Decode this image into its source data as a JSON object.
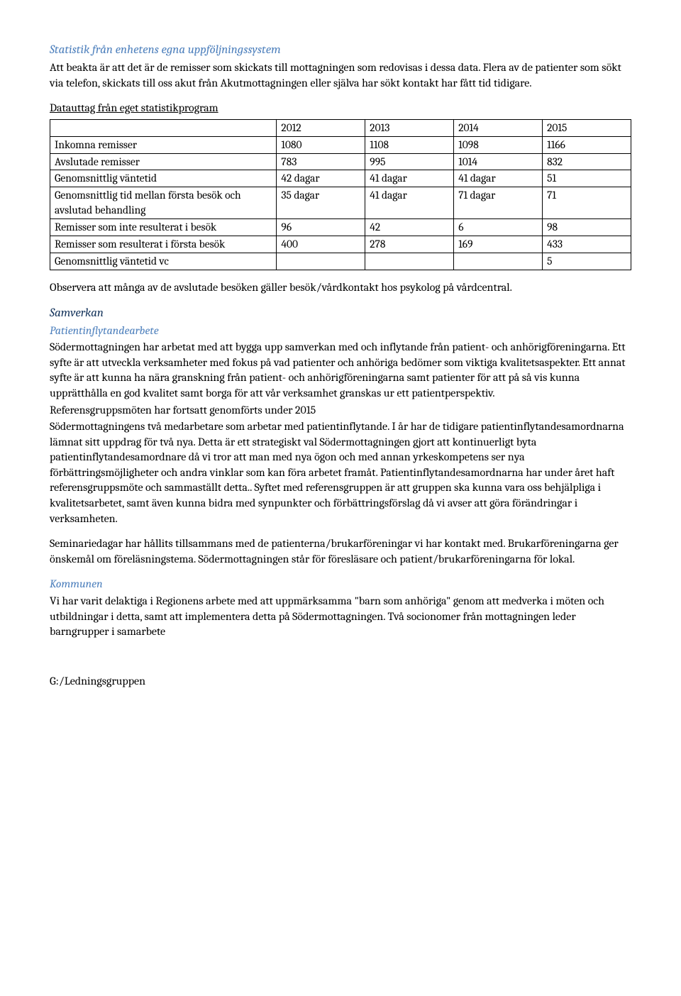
{
  "section1": {
    "heading": "Statistik från enhetens egna uppföljningssystem",
    "para1": "Att beakta är att det är de remisser som skickats till mottagningen som redovisas i dessa data. Flera av de patienter som sökt via telefon, skickats till oss akut från Akutmottagningen eller själva har sökt kontakt har fått tid tidigare."
  },
  "table": {
    "title_underlined": "Datauttag från eget statistikprogram",
    "columns": [
      "",
      "2012",
      "2013",
      "2014",
      "2015"
    ],
    "rows": [
      {
        "label": "Inkomna remisser",
        "c1": "1080",
        "c2": "1108",
        "c3": "1098",
        "c4": "1166"
      },
      {
        "label": "Avslutade remisser",
        "c1": "783",
        "c2": "995",
        "c3": "1014",
        "c4": "832"
      },
      {
        "label": "Genomsnittlig väntetid",
        "c1": "42 dagar",
        "c2": "41 dagar",
        "c3": "41 dagar",
        "c4": "51"
      },
      {
        "label": "Genomsnittlig tid mellan första besök och avslutad behandling",
        "c1": "35 dagar",
        "c2": "41 dagar",
        "c3": "71 dagar",
        "c4": "71"
      },
      {
        "label": "Remisser som inte resulterat i besök",
        "c1": "96",
        "c2": "42",
        "c3": "6",
        "c4": "98"
      },
      {
        "label": "Remisser som resulterat i första besök",
        "c1": "400",
        "c2": "278",
        "c3": "169",
        "c4": "433"
      },
      {
        "label": "Genomsnittlig väntetid vc",
        "c1": "",
        "c2": "",
        "c3": "",
        "c4": "5"
      }
    ],
    "border_color": "#000000",
    "font_size": 15.5
  },
  "para_observera": "Observera att många av de avslutade besöken gäller besök/vårdkontakt hos psykolog på vårdcentral.",
  "samverkan": {
    "heading": "Samverkan",
    "sub1_heading": "Patientinflytandearbete",
    "sub1_para1": "Södermottagningen har arbetat med att bygga upp samverkan med och inflytande från patient- och anhörigföreningarna. Ett syfte är att utveckla verksamheter med fokus på vad patienter och anhöriga bedömer som viktiga kvalitetsaspekter. Ett annat syfte är att kunna ha nära granskning från patient- och anhörigföreningarna samt patienter för att på så vis kunna upprätthålla en god kvalitet samt borga för att vår verksamhet granskas ur ett patientperspektiv.",
    "sub1_para2": "Referensgruppsmöten har fortsatt genomförts under 2015",
    "sub1_para3": "Södermottagningens två medarbetare som arbetar med patientinflytande. I år har de tidigare patientinflytandesamordnarna lämnat sitt uppdrag för två nya. Detta är ett strategiskt val Södermottagningen gjort att kontinuerligt byta patientinflytandesamordnare då vi tror att man med nya ögon och med annan yrkeskompetens ser nya förbättringsmöjligheter och andra vinklar som kan föra arbetet framåt. Patientinflytandesamordnarna har under året haft referensgruppsmöte och sammaställt detta.. Syftet med referensgruppen är att gruppen ska kunna vara oss behjälpliga i kvalitetsarbetet, samt även kunna bidra med synpunkter och förbättringsförslag då vi avser att göra förändringar i verksamheten.",
    "sub1_para4": "Seminariedagar har hållits tillsammans med de patienterna/brukarföreningar vi har kontakt med. Brukarföreningarna ger önskemål om föreläsningstema. Södermottagningen står för föresläsare och patient/brukarföreningarna för lokal.",
    "sub2_heading": "Kommunen",
    "sub2_para1": "Vi har varit delaktiga i Regionens arbete med att uppmärksamma \"barn som anhöriga\" genom att medverka i möten och utbildningar i detta, samt att implementera detta på Södermottagningen. Två socionomer från mottagningen leder barngrupper i samarbete"
  },
  "footer": "G:/Ledningsgruppen",
  "colors": {
    "heading_blue": "#4f81bd",
    "heading_darkblue": "#17365d",
    "text": "#000000",
    "background": "#ffffff"
  }
}
